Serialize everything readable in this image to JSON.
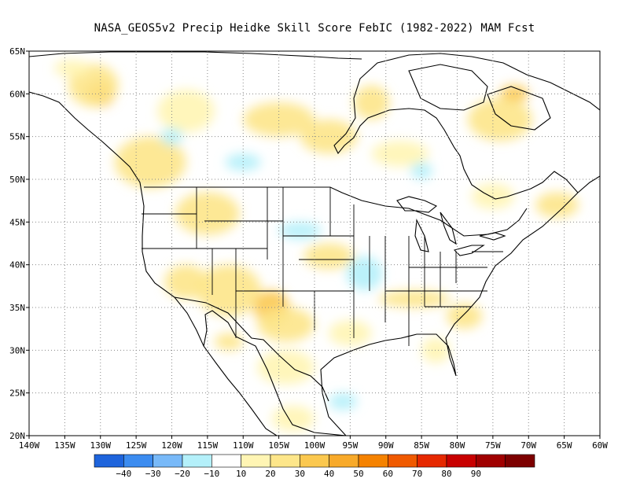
{
  "title": "NASA_GEOS5v2 Precip Heidke Skill Score FebIC (1982-2022) MAM Fcst",
  "map": {
    "lon_range": [
      -140,
      -60
    ],
    "lat_range": [
      20,
      65
    ],
    "gridlines": "dotted",
    "lon_ticks": [
      {
        "value": -140,
        "label": "140W"
      },
      {
        "value": -135,
        "label": "135W"
      },
      {
        "value": -130,
        "label": "130W"
      },
      {
        "value": -125,
        "label": "125W"
      },
      {
        "value": -120,
        "label": "120W"
      },
      {
        "value": -115,
        "label": "115W"
      },
      {
        "value": -110,
        "label": "110W"
      },
      {
        "value": -105,
        "label": "105W"
      },
      {
        "value": -100,
        "label": "100W"
      },
      {
        "value": -95,
        "label": "95W"
      },
      {
        "value": -90,
        "label": "90W"
      },
      {
        "value": -85,
        "label": "85W"
      },
      {
        "value": -80,
        "label": "80W"
      },
      {
        "value": -75,
        "label": "75W"
      },
      {
        "value": -70,
        "label": "70W"
      },
      {
        "value": -65,
        "label": "65W"
      },
      {
        "value": -60,
        "label": "60W"
      }
    ],
    "lat_ticks": [
      {
        "value": 20,
        "label": "20N"
      },
      {
        "value": 25,
        "label": "25N"
      },
      {
        "value": 30,
        "label": "30N"
      },
      {
        "value": 35,
        "label": "35N"
      },
      {
        "value": 40,
        "label": "40N"
      },
      {
        "value": 45,
        "label": "45N"
      },
      {
        "value": 50,
        "label": "50N"
      },
      {
        "value": 55,
        "label": "55N"
      },
      {
        "value": 60,
        "label": "60N"
      },
      {
        "value": 65,
        "label": "65N"
      }
    ]
  },
  "colorbar": {
    "colors": [
      "#1e64dc",
      "#3c8cf0",
      "#78b9f8",
      "#b4f0fa",
      "#ffffff",
      "#fff5b4",
      "#fde68a",
      "#fbc84f",
      "#f8aa2a",
      "#f58200",
      "#f05a00",
      "#e62800",
      "#c80000",
      "#a00000",
      "#7d0000"
    ],
    "labels": [
      "−40",
      "−30",
      "−20",
      "−10",
      "10",
      "20",
      "30",
      "40",
      "50",
      "60",
      "70",
      "80",
      "90"
    ]
  },
  "score_regions": [
    {
      "lon": -130,
      "lat": 60,
      "value": 45,
      "w": 4,
      "h": 3
    },
    {
      "lon": -131,
      "lat": 61,
      "value": 25,
      "w": 7,
      "h": 5
    },
    {
      "lon": -123,
      "lat": 52,
      "value": 20,
      "w": 10,
      "h": 6
    },
    {
      "lon": -118,
      "lat": 58,
      "value": 15,
      "w": 8,
      "h": 5
    },
    {
      "lon": -105,
      "lat": 57,
      "value": 20,
      "w": 10,
      "h": 4
    },
    {
      "lon": -98,
      "lat": 55,
      "value": 25,
      "w": 8,
      "h": 4
    },
    {
      "lon": -92,
      "lat": 59,
      "value": 20,
      "w": 5,
      "h": 4
    },
    {
      "lon": -88,
      "lat": 53,
      "value": 15,
      "w": 8,
      "h": 3
    },
    {
      "lon": -110,
      "lat": 52,
      "value": -15,
      "w": 5,
      "h": 2
    },
    {
      "lon": -85,
      "lat": 51,
      "value": -15,
      "w": 3,
      "h": 2
    },
    {
      "lon": -72,
      "lat": 60,
      "value": 30,
      "w": 4,
      "h": 2
    },
    {
      "lon": -74,
      "lat": 57,
      "value": 20,
      "w": 9,
      "h": 5
    },
    {
      "lon": -66,
      "lat": 47,
      "value": 20,
      "w": 6,
      "h": 3
    },
    {
      "lon": -75,
      "lat": 48,
      "value": 15,
      "w": 6,
      "h": 3
    },
    {
      "lon": -115,
      "lat": 46,
      "value": 20,
      "w": 9,
      "h": 5
    },
    {
      "lon": -118,
      "lat": 38,
      "value": 20,
      "w": 6,
      "h": 4
    },
    {
      "lon": -112,
      "lat": 37,
      "value": 25,
      "w": 9,
      "h": 6
    },
    {
      "lon": -106,
      "lat": 35,
      "value": 35,
      "w": 5,
      "h": 4
    },
    {
      "lon": -104,
      "lat": 33,
      "value": 20,
      "w": 8,
      "h": 4
    },
    {
      "lon": -98,
      "lat": 41,
      "value": 20,
      "w": 7,
      "h": 3
    },
    {
      "lon": -102,
      "lat": 44,
      "value": -15,
      "w": 6,
      "h": 2
    },
    {
      "lon": -93,
      "lat": 39,
      "value": -15,
      "w": 5,
      "h": 4
    },
    {
      "lon": -86,
      "lat": 36,
      "value": 20,
      "w": 10,
      "h": 2
    },
    {
      "lon": -79,
      "lat": 34,
      "value": 20,
      "w": 5,
      "h": 3
    },
    {
      "lon": -95,
      "lat": 32,
      "value": 15,
      "w": 6,
      "h": 3
    },
    {
      "lon": -104,
      "lat": 28,
      "value": 15,
      "w": 8,
      "h": 4
    },
    {
      "lon": -112,
      "lat": 31,
      "value": 20,
      "w": 4,
      "h": 2
    },
    {
      "lon": -96,
      "lat": 24,
      "value": -15,
      "w": 4,
      "h": 2
    },
    {
      "lon": -103,
      "lat": 22,
      "value": 15,
      "w": 6,
      "h": 3
    },
    {
      "lon": -83,
      "lat": 30,
      "value": 15,
      "w": 4,
      "h": 3
    },
    {
      "lon": -120,
      "lat": 55,
      "value": -12,
      "w": 3,
      "h": 2
    },
    {
      "lon": -134,
      "lat": 63,
      "value": 15,
      "w": 5,
      "h": 2
    }
  ]
}
